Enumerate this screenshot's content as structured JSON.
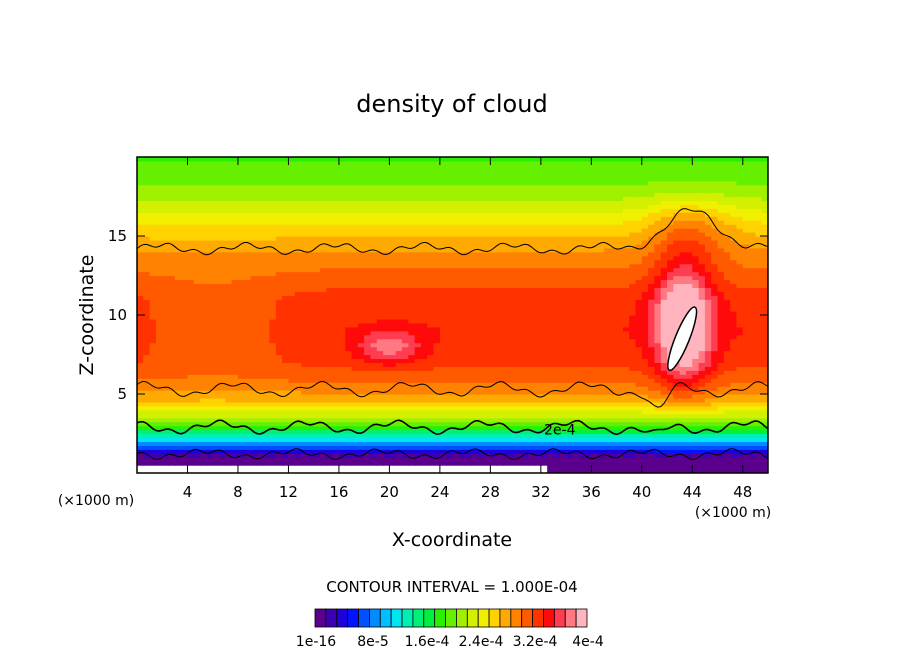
{
  "chart_data": {
    "type": "heatmap",
    "title": "density of cloud",
    "xlabel": "X-coordinate",
    "ylabel": "Z-coordinate",
    "x_unit": "(×1000 m)",
    "xlim": [
      0,
      50
    ],
    "ylim": [
      0,
      20
    ],
    "x_ticks": [
      4,
      8,
      12,
      16,
      20,
      24,
      28,
      32,
      36,
      40,
      44,
      48
    ],
    "y_ticks": [
      5,
      10,
      15
    ],
    "contour_interval": "CONTOUR INTERVAL = 1.000E-04",
    "colorbar_labels": [
      "1e-16",
      "8e-5",
      "1.6e-4",
      "2.4e-4",
      "3.2e-4",
      "4e-4"
    ],
    "colorbar_colors": [
      "#5a008c",
      "#3c00b4",
      "#1e00dc",
      "#0014ff",
      "#0050ff",
      "#008cff",
      "#00beff",
      "#00e6f0",
      "#00f0b4",
      "#00f078",
      "#00f040",
      "#28f000",
      "#64f000",
      "#a0f000",
      "#d2f000",
      "#f0f000",
      "#ffd200",
      "#ffaa00",
      "#ff8200",
      "#ff5a00",
      "#ff3200",
      "#ff0a0a",
      "#ff3c50",
      "#ff7882",
      "#ffb4be"
    ],
    "field_bands": [
      {
        "z": 0.4,
        "value": 0.0
      },
      {
        "z": 1.0,
        "value": 1e-05
      },
      {
        "z": 1.3,
        "value": 4e-05
      },
      {
        "z": 1.6,
        "value": 7e-05
      },
      {
        "z": 2.0,
        "value": 0.0001
      },
      {
        "z": 2.5,
        "value": 0.00015
      },
      {
        "z": 3.0,
        "value": 0.00019
      },
      {
        "z": 3.5,
        "value": 0.00022
      },
      {
        "z": 4.5,
        "value": 0.00027
      },
      {
        "z": 5.5,
        "value": 0.0003
      },
      {
        "z": 7.0,
        "value": 0.000325
      },
      {
        "z": 9.0,
        "value": 0.000335
      },
      {
        "z": 11.0,
        "value": 0.00033
      },
      {
        "z": 12.5,
        "value": 0.00031
      },
      {
        "z": 14.0,
        "value": 0.00029
      },
      {
        "z": 15.5,
        "value": 0.00026
      },
      {
        "z": 17.0,
        "value": 0.00023
      },
      {
        "z": 18.0,
        "value": 0.00021
      },
      {
        "z": 20.0,
        "value": 0.00019
      }
    ],
    "contour_labels": [
      {
        "text": "2e-4",
        "x": 33.5,
        "z": 2.7
      }
    ]
  }
}
